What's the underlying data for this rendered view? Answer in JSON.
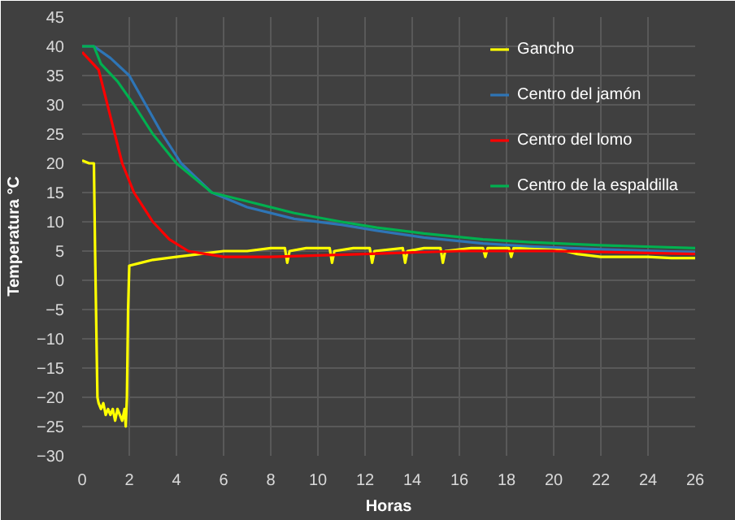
{
  "chart_data": {
    "type": "line",
    "xlabel": "Horas",
    "ylabel": "Temperatura °C",
    "xlim": [
      0,
      26
    ],
    "ylim": [
      -30,
      45
    ],
    "xticks": [
      0,
      2,
      4,
      6,
      8,
      10,
      12,
      14,
      16,
      18,
      20,
      22,
      24,
      26
    ],
    "yticks": [
      -30,
      -25,
      -20,
      -15,
      -10,
      -5,
      0,
      5,
      10,
      15,
      20,
      25,
      30,
      35,
      40,
      45
    ],
    "grid": true,
    "legend": "top right",
    "line_style": "solid",
    "marker": "none",
    "series": [
      {
        "name": "Gancho",
        "color": "#ffff00",
        "x": [
          0,
          0.3,
          0.5,
          0.55,
          0.65,
          0.7,
          0.8,
          0.9,
          1.0,
          1.1,
          1.2,
          1.3,
          1.4,
          1.5,
          1.6,
          1.7,
          1.8,
          1.85,
          1.9,
          1.95,
          2.0,
          2.5,
          3,
          4,
          5,
          6,
          7,
          8,
          8.6,
          8.7,
          8.8,
          9.5,
          10.5,
          10.6,
          10.7,
          11.5,
          12.2,
          12.3,
          12.4,
          13.6,
          13.7,
          13.8,
          14.5,
          15.2,
          15.3,
          15.4,
          16.5,
          17.0,
          17.1,
          17.2,
          18.1,
          18.2,
          18.3,
          19,
          20,
          21,
          22,
          23,
          24,
          25,
          26
        ],
        "values": [
          20.5,
          20,
          20,
          5,
          -20,
          -21,
          -22,
          -21,
          -23,
          -22,
          -23,
          -22,
          -24,
          -22,
          -23,
          -24,
          -22,
          -25,
          -20,
          -5,
          2.5,
          3,
          3.5,
          4,
          4.5,
          5,
          5,
          5.5,
          5.5,
          3,
          5,
          5.5,
          5.5,
          3,
          5,
          5.5,
          5.5,
          3,
          5,
          5.5,
          3,
          5,
          5.5,
          5.5,
          3,
          5,
          5.5,
          5.5,
          4,
          5.5,
          5.5,
          4,
          5.5,
          5.5,
          5.5,
          4.5,
          4,
          4,
          4,
          3.8,
          3.8
        ]
      },
      {
        "name": "Centro del jamón",
        "color": "#2e75b6",
        "x": [
          0,
          0.5,
          1.2,
          2,
          2.7,
          3.4,
          4.2,
          5.5,
          7,
          9,
          11,
          12.5,
          14.5,
          17,
          19,
          22,
          26
        ],
        "values": [
          40,
          40,
          38,
          35,
          30,
          25,
          20,
          15,
          12.5,
          10.5,
          9.5,
          8.5,
          7.3,
          6.3,
          5.8,
          5.3,
          4.8
        ]
      },
      {
        "name": "Centro del lomo",
        "color": "#ff0000",
        "x": [
          0,
          0.7,
          1.2,
          1.7,
          2.2,
          3,
          3.7,
          4.5,
          6,
          8,
          12,
          16,
          20,
          26
        ],
        "values": [
          39,
          36,
          28,
          20,
          15,
          10,
          7,
          5,
          4,
          4,
          4.5,
          5,
          5,
          4.5
        ]
      },
      {
        "name": "Centro de la espaldilla",
        "color": "#00b050",
        "x": [
          0,
          0.5,
          0.8,
          1.5,
          2.2,
          3,
          4,
          5.5,
          7,
          9,
          11,
          12.5,
          14.5,
          17,
          19,
          22,
          26
        ],
        "values": [
          40,
          40,
          37,
          34,
          30,
          25,
          20,
          15,
          13.5,
          11.5,
          10,
          9,
          8,
          7,
          6.5,
          6,
          5.5
        ]
      }
    ]
  }
}
